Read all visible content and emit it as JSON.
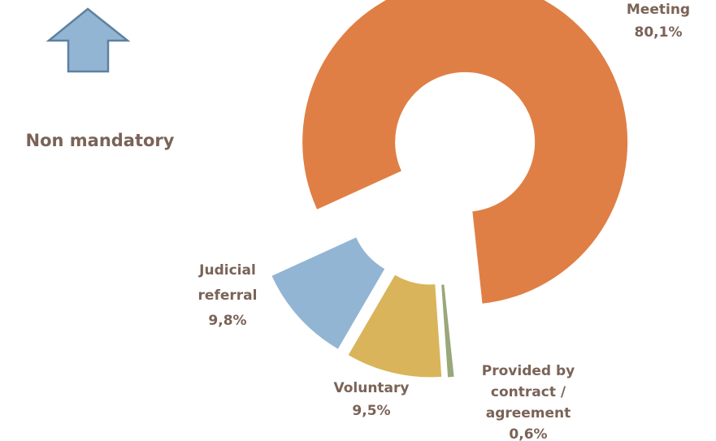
{
  "chart_data": {
    "type": "donut",
    "annotation": "Non mandatory",
    "categories": [
      "Meeting",
      "Provided by contract / agreement",
      "Voluntary",
      "Judicial referral"
    ],
    "values": [
      80.1,
      0.6,
      9.5,
      9.8
    ],
    "value_labels": [
      "80,1%",
      "0,6%",
      "9,5%",
      "9,8%"
    ],
    "colors": [
      "#e07f45",
      "#9aa77a",
      "#d9b45a",
      "#93b5d4"
    ]
  }
}
